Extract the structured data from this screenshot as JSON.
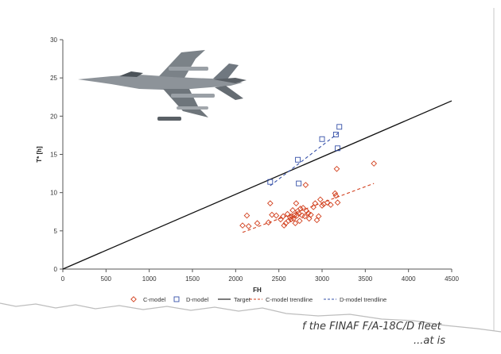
{
  "caption": {
    "line1": "f the FINAF F/A-18C/D fleet",
    "line2": "...at is"
  },
  "chart_data": {
    "type": "scatter",
    "xlabel": "FH",
    "ylabel": "T* [h]",
    "xlim": [
      0,
      4500
    ],
    "ylim": [
      0,
      30
    ],
    "xticks": [
      "0",
      "500",
      "1000",
      "1500",
      "2000",
      "2500",
      "3000",
      "3500",
      "4000",
      "4500"
    ],
    "yticks": [
      "0",
      "5",
      "10",
      "15",
      "20",
      "25",
      "30"
    ],
    "grid": false,
    "legend_position": "bottom",
    "colors": {
      "c_model": "#d2401e",
      "d_model": "#3550a8",
      "target": "#111111"
    },
    "series": [
      {
        "name": "C-model",
        "marker": "diamond",
        "points": [
          [
            2080,
            5.7
          ],
          [
            2130,
            7.0
          ],
          [
            2150,
            5.6
          ],
          [
            2250,
            6.0
          ],
          [
            2380,
            6.1
          ],
          [
            2400,
            8.6
          ],
          [
            2420,
            7.1
          ],
          [
            2470,
            7.0
          ],
          [
            2520,
            6.5
          ],
          [
            2550,
            6.9
          ],
          [
            2560,
            5.7
          ],
          [
            2580,
            6.0
          ],
          [
            2600,
            7.2
          ],
          [
            2610,
            6.3
          ],
          [
            2630,
            6.8
          ],
          [
            2640,
            6.5
          ],
          [
            2650,
            6.9
          ],
          [
            2660,
            7.7
          ],
          [
            2670,
            6.6
          ],
          [
            2680,
            7.0
          ],
          [
            2690,
            6.0
          ],
          [
            2700,
            8.6
          ],
          [
            2710,
            7.0
          ],
          [
            2720,
            7.6
          ],
          [
            2730,
            7.3
          ],
          [
            2740,
            6.3
          ],
          [
            2750,
            7.9
          ],
          [
            2770,
            7.0
          ],
          [
            2780,
            8.0
          ],
          [
            2800,
            6.9
          ],
          [
            2810,
            11.0
          ],
          [
            2820,
            7.6
          ],
          [
            2840,
            7.3
          ],
          [
            2850,
            6.6
          ],
          [
            2870,
            7.1
          ],
          [
            2900,
            8.1
          ],
          [
            2920,
            8.6
          ],
          [
            2940,
            6.4
          ],
          [
            2960,
            6.9
          ],
          [
            2980,
            9.1
          ],
          [
            3000,
            8.3
          ],
          [
            3020,
            8.5
          ],
          [
            3060,
            8.7
          ],
          [
            3100,
            8.4
          ],
          [
            3150,
            9.9
          ],
          [
            3160,
            9.6
          ],
          [
            3170,
            13.1
          ],
          [
            3180,
            8.7
          ],
          [
            3600,
            13.8
          ]
        ]
      },
      {
        "name": "D-model",
        "marker": "square",
        "points": [
          [
            2400,
            11.4
          ],
          [
            2720,
            14.3
          ],
          [
            2730,
            11.2
          ],
          [
            3000,
            17.0
          ],
          [
            3160,
            17.6
          ],
          [
            3180,
            15.8
          ],
          [
            3200,
            18.6
          ]
        ]
      },
      {
        "name": "Target",
        "style": "solid line",
        "line": [
          [
            0,
            0
          ],
          [
            4500,
            22
          ]
        ]
      },
      {
        "name": "C-model trendline",
        "style": "dashed line",
        "line": [
          [
            2080,
            4.8
          ],
          [
            3600,
            11.2
          ]
        ]
      },
      {
        "name": "D-model trendline",
        "style": "dashed line",
        "line": [
          [
            2400,
            10.9
          ],
          [
            3200,
            17.9
          ]
        ]
      }
    ],
    "legend": [
      "C-model",
      "D-model",
      "Target",
      "C-model trendline",
      "D-model trendline"
    ]
  }
}
